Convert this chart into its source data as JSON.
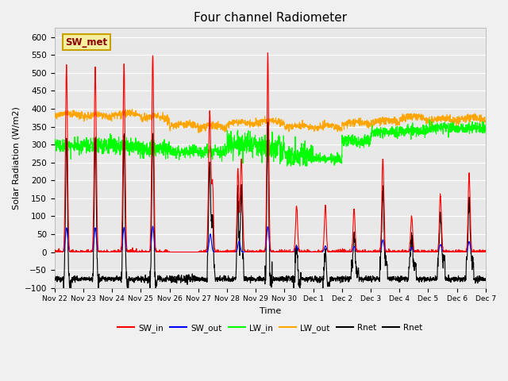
{
  "title": "Four channel Radiometer",
  "xlabel": "Time",
  "ylabel": "Solar Radiation (W/m2)",
  "ylim": [
    -100,
    625
  ],
  "yticks": [
    -100,
    -50,
    0,
    50,
    100,
    150,
    200,
    250,
    300,
    350,
    400,
    450,
    500,
    550,
    600
  ],
  "station_label": "SW_met",
  "tick_labels": [
    "Nov 22",
    "Nov 23",
    "Nov 24",
    "Nov 25",
    "Nov 26",
    "Nov 27",
    "Nov 28",
    "Nov 29",
    "Nov 30",
    "Dec 1",
    "Dec 2",
    "Dec 3",
    "Dec 4",
    "Dec 5",
    "Dec 6",
    "Dec 7"
  ],
  "legend_labels": [
    "SW_in",
    "SW_out",
    "LW_in",
    "LW_out",
    "Rnet",
    "Rnet"
  ],
  "legend_colors": [
    "red",
    "blue",
    "lime",
    "orange",
    "black",
    "black"
  ]
}
